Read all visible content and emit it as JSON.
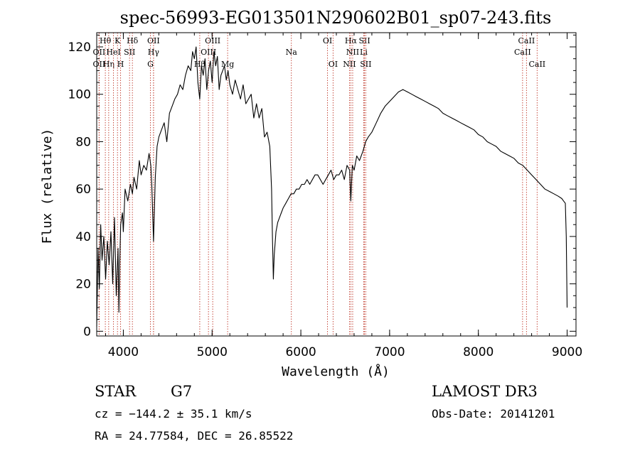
{
  "chart_data": {
    "type": "line",
    "title": "spec-56993-EG013501N290602B01_sp07-243.fits",
    "xlabel": "Wavelength (Å)",
    "ylabel": "Flux (relative)",
    "xlim": [
      3700,
      9100
    ],
    "ylim": [
      -2,
      126
    ],
    "x_ticks": [
      4000,
      5000,
      6000,
      7000,
      8000,
      9000
    ],
    "y_ticks": [
      0,
      20,
      40,
      60,
      80,
      100,
      120
    ],
    "grid": false,
    "series": [
      {
        "color": "#000000",
        "x": [
          3700,
          3715,
          3730,
          3745,
          3760,
          3780,
          3800,
          3820,
          3840,
          3860,
          3880,
          3900,
          3920,
          3940,
          3950,
          3960,
          3970,
          3990,
          4000,
          4020,
          4050,
          4080,
          4102,
          4120,
          4150,
          4180,
          4200,
          4230,
          4260,
          4290,
          4310,
          4320,
          4340,
          4360,
          4380,
          4400,
          4430,
          4460,
          4490,
          4520,
          4550,
          4580,
          4610,
          4640,
          4670,
          4700,
          4730,
          4760,
          4780,
          4800,
          4820,
          4840,
          4861,
          4880,
          4900,
          4920,
          4940,
          4960,
          4980,
          5000,
          5020,
          5040,
          5060,
          5080,
          5100,
          5120,
          5140,
          5160,
          5180,
          5200,
          5230,
          5260,
          5290,
          5320,
          5350,
          5380,
          5410,
          5440,
          5470,
          5500,
          5530,
          5560,
          5590,
          5620,
          5650,
          5670,
          5680,
          5690,
          5700,
          5720,
          5740,
          5760,
          5780,
          5800,
          5830,
          5860,
          5890,
          5920,
          5950,
          5980,
          6010,
          6040,
          6070,
          6100,
          6130,
          6160,
          6190,
          6220,
          6250,
          6280,
          6310,
          6340,
          6370,
          6400,
          6430,
          6460,
          6490,
          6520,
          6550,
          6563,
          6580,
          6600,
          6630,
          6660,
          6700,
          6730,
          6760,
          6800,
          6850,
          6900,
          6950,
          7000,
          7050,
          7100,
          7150,
          7200,
          7250,
          7300,
          7350,
          7400,
          7450,
          7500,
          7550,
          7600,
          7650,
          7700,
          7750,
          7800,
          7850,
          7900,
          7950,
          8000,
          8050,
          8100,
          8150,
          8200,
          8250,
          8300,
          8350,
          8400,
          8450,
          8500,
          8550,
          8600,
          8650,
          8700,
          8750,
          8800,
          8850,
          8900,
          8940,
          8960,
          8980,
          8990,
          9000
        ],
        "y": [
          2,
          35,
          18,
          45,
          30,
          40,
          22,
          38,
          28,
          42,
          20,
          48,
          15,
          35,
          8,
          30,
          45,
          50,
          42,
          60,
          55,
          62,
          58,
          65,
          60,
          72,
          66,
          70,
          68,
          75,
          70,
          62,
          38,
          65,
          78,
          82,
          85,
          88,
          80,
          92,
          95,
          98,
          100,
          104,
          102,
          108,
          112,
          110,
          118,
          115,
          120,
          105,
          98,
          112,
          108,
          115,
          102,
          110,
          114,
          105,
          118,
          112,
          116,
          102,
          108,
          110,
          112,
          106,
          110,
          104,
          100,
          106,
          102,
          98,
          104,
          96,
          98,
          100,
          90,
          96,
          90,
          94,
          82,
          84,
          78,
          60,
          40,
          22,
          32,
          42,
          46,
          48,
          50,
          52,
          54,
          56,
          58,
          58,
          60,
          60,
          62,
          62,
          64,
          62,
          64,
          66,
          66,
          64,
          62,
          64,
          66,
          68,
          64,
          66,
          66,
          68,
          64,
          70,
          68,
          55,
          70,
          68,
          74,
          72,
          76,
          80,
          82,
          84,
          88,
          92,
          95,
          97,
          99,
          101,
          102,
          101,
          100,
          99,
          98,
          97,
          96,
          95,
          94,
          92,
          91,
          90,
          89,
          88,
          87,
          86,
          85,
          83,
          82,
          80,
          79,
          78,
          76,
          75,
          74,
          73,
          71,
          70,
          68,
          66,
          64,
          62,
          60,
          59,
          58,
          57,
          56,
          55,
          54,
          40,
          10
        ]
      }
    ]
  },
  "line_markers": [
    {
      "label": "Hθ",
      "x": 3797,
      "row": 0
    },
    {
      "label": "OII",
      "x": 3727,
      "row": 1
    },
    {
      "label": "OII",
      "x": 3727,
      "row": 2
    },
    {
      "label": "Hη",
      "x": 3835,
      "row": 2
    },
    {
      "label": "K",
      "x": 3934,
      "row": 0
    },
    {
      "label": "HeI",
      "x": 3889,
      "row": 1
    },
    {
      "label": "H",
      "x": 3969,
      "row": 2
    },
    {
      "label": "Hδ",
      "x": 4102,
      "row": 0
    },
    {
      "label": "SII",
      "x": 4070,
      "row": 1
    },
    {
      "label": "OII",
      "x": 4340,
      "row": 0
    },
    {
      "label": "Hγ",
      "x": 4340,
      "row": 1
    },
    {
      "label": "G",
      "x": 4305,
      "row": 2
    },
    {
      "label": "OIII",
      "x": 5007,
      "row": 0
    },
    {
      "label": "OIII",
      "x": 4959,
      "row": 1
    },
    {
      "label": "Hβ",
      "x": 4861,
      "row": 2
    },
    {
      "label": "Mg",
      "x": 5175,
      "row": 2
    },
    {
      "label": "Na",
      "x": 5893,
      "row": 1
    },
    {
      "label": "OI",
      "x": 6300,
      "row": 0
    },
    {
      "label": "OI",
      "x": 6363,
      "row": 2
    },
    {
      "label": "Hα",
      "x": 6563,
      "row": 0
    },
    {
      "label": "SII",
      "x": 6717,
      "row": 0
    },
    {
      "label": "NII",
      "x": 6584,
      "row": 1
    },
    {
      "label": "Li",
      "x": 6708,
      "row": 1
    },
    {
      "label": "NII",
      "x": 6548,
      "row": 2
    },
    {
      "label": "SII",
      "x": 6731,
      "row": 2
    },
    {
      "label": "CaII",
      "x": 8542,
      "row": 0
    },
    {
      "label": "CaII",
      "x": 8498,
      "row": 1
    },
    {
      "label": "CaII",
      "x": 8662,
      "row": 2
    }
  ],
  "info": {
    "object_class": "STAR",
    "subclass": "G7",
    "survey": "LAMOST DR3",
    "cz": "cz = −144.2 ± 35.1 km/s",
    "obs_date": "Obs-Date: 20141201",
    "coords": "RA =  24.77584, DEC =  26.85522"
  }
}
